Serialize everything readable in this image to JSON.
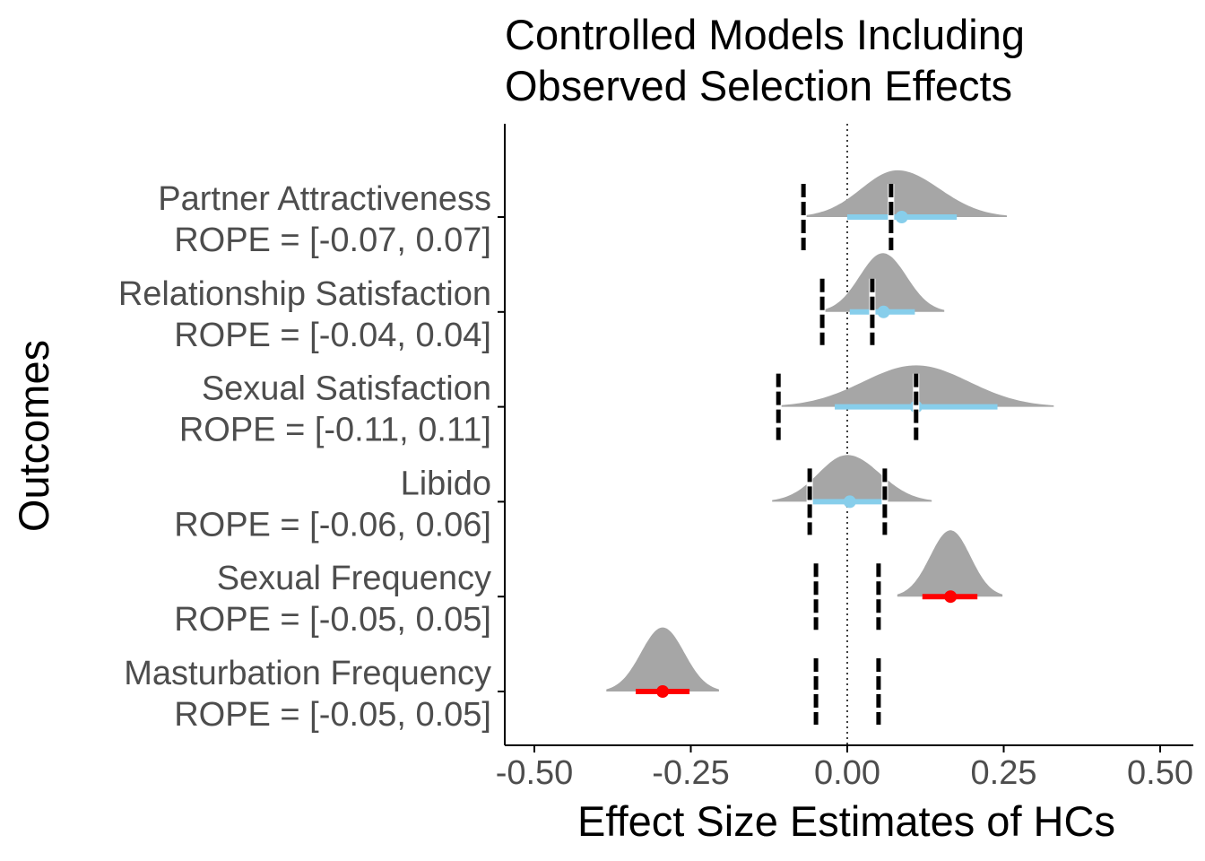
{
  "chart_data": {
    "type": "density-interval",
    "title_lines": [
      "Controlled Models Including",
      "Observed Selection Effects"
    ],
    "xlabel": "Effect Size Estimates of HCs",
    "ylabel": "Outcomes",
    "xlim": [
      -0.5,
      0.5
    ],
    "x_ticks": [
      -0.5,
      -0.25,
      0.0,
      0.25,
      0.5
    ],
    "x_tick_labels": [
      "-0.50",
      "-0.25",
      "0.00",
      "0.25",
      "0.50"
    ],
    "reference_line": 0.0,
    "colors": {
      "density": "#a6a6a6",
      "interval_non_significant": "#87ceeb",
      "interval_significant": "#ff0000",
      "rope_line": "#000000",
      "text": "#4d4d4d"
    },
    "outcomes": [
      {
        "name": "Partner Attractiveness",
        "rope_label": "ROPE = [-0.07, 0.07]",
        "rope": [
          -0.07,
          0.07
        ],
        "estimate": 0.087,
        "interval": [
          0.0,
          0.175
        ],
        "density_range": [
          -0.07,
          0.255
        ],
        "density_mode": 0.08,
        "density_height": 0.62,
        "significant": false
      },
      {
        "name": "Relationship Satisfaction",
        "rope_label": "ROPE = [-0.04, 0.04]",
        "rope": [
          -0.04,
          0.04
        ],
        "estimate": 0.058,
        "interval": [
          0.004,
          0.108
        ],
        "density_range": [
          -0.04,
          0.155
        ],
        "density_mode": 0.057,
        "density_height": 0.78,
        "significant": false
      },
      {
        "name": "Sexual Satisfaction",
        "rope_label": "ROPE = [-0.11, 0.11]",
        "rope": [
          -0.11,
          0.11
        ],
        "estimate": 0.11,
        "interval": [
          -0.02,
          0.24
        ],
        "density_range": [
          -0.11,
          0.33
        ],
        "density_mode": 0.11,
        "density_height": 0.55,
        "significant": false
      },
      {
        "name": "Libido",
        "rope_label": "ROPE = [-0.06, 0.06]",
        "rope": [
          -0.06,
          0.06
        ],
        "estimate": 0.004,
        "interval": [
          -0.055,
          0.06
        ],
        "density_range": [
          -0.12,
          0.135
        ],
        "density_mode": 0.0,
        "density_height": 0.62,
        "significant": false
      },
      {
        "name": "Sexual Frequency",
        "rope_label": "ROPE = [-0.05, 0.05]",
        "rope": [
          -0.05,
          0.05
        ],
        "estimate": 0.165,
        "interval": [
          0.12,
          0.208
        ],
        "density_range": [
          0.08,
          0.248
        ],
        "density_mode": 0.165,
        "density_height": 0.88,
        "significant": true
      },
      {
        "name": "Masturbation Frequency",
        "rope_label": "ROPE = [-0.05, 0.05]",
        "rope": [
          -0.05,
          0.05
        ],
        "estimate": -0.295,
        "interval": [
          -0.338,
          -0.252
        ],
        "density_range": [
          -0.385,
          -0.205
        ],
        "density_mode": -0.295,
        "density_height": 0.85,
        "significant": true
      }
    ]
  }
}
